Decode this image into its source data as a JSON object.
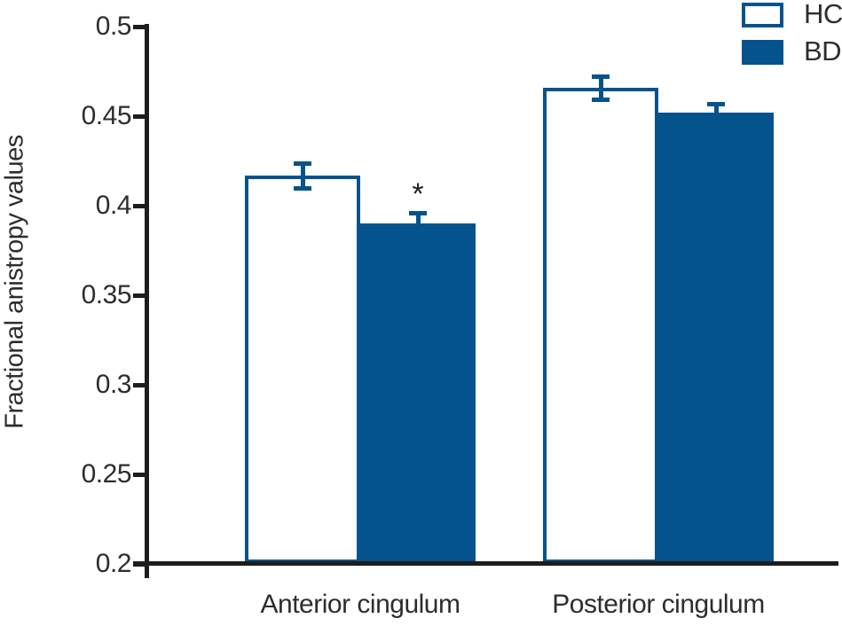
{
  "chart_data": {
    "type": "bar",
    "title": "",
    "ylabel": "Fractional anistropy values",
    "xlabel": "",
    "categories": [
      "Anterior cingulum",
      "Posterior cingulum"
    ],
    "series": [
      {
        "name": "HC",
        "fill": "#ffffff",
        "values": [
          0.417,
          0.466
        ],
        "errors": [
          0.007,
          0.0065
        ]
      },
      {
        "name": "BD",
        "fill": "#04538d",
        "values": [
          0.39,
          0.452
        ],
        "errors": [
          0.006,
          0.005
        ]
      }
    ],
    "ylim": [
      0.2,
      0.5
    ],
    "yticks": [
      {
        "value": 0.5,
        "label": "0.5"
      },
      {
        "value": 0.45,
        "label": "0.45"
      },
      {
        "value": 0.4,
        "label": "0.4"
      },
      {
        "value": 0.35,
        "label": "0.35"
      },
      {
        "value": 0.3,
        "label": "0.3"
      },
      {
        "value": 0.25,
        "label": "0.25"
      },
      {
        "value": 0.2,
        "label": "0.2"
      }
    ],
    "grid": false,
    "legend_position": "top-right",
    "annotations": [
      {
        "symbol": "*",
        "category_index": 0,
        "series_index": 1
      }
    ],
    "colors": {
      "bar_border": "#04538d",
      "bar_fill_hc": "#ffffff",
      "bar_fill_bd": "#04538d",
      "error_bar": "#04538d",
      "axis": "#1d1d1b",
      "text": "#2e2d2c",
      "significance": "#1d1d1b"
    }
  }
}
